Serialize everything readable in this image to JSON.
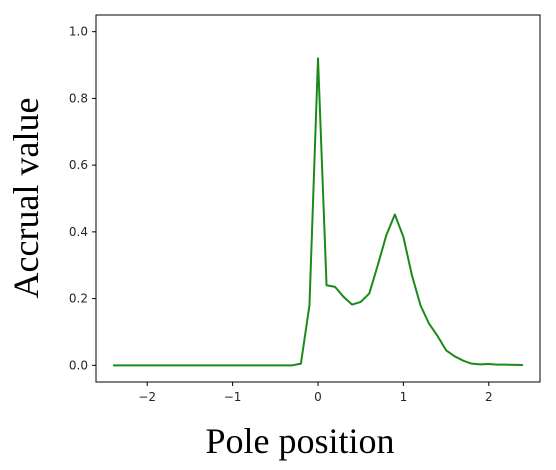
{
  "chart_data": {
    "type": "line",
    "title": "",
    "xlabel": "Pole position",
    "ylabel": "Accrual value",
    "xlim": [
      -2.6,
      2.6
    ],
    "ylim": [
      -0.05,
      1.05
    ],
    "xticks": [
      -2,
      -1,
      0,
      1,
      2
    ],
    "xtick_labels": [
      "−2",
      "−1",
      "0",
      "1",
      "2"
    ],
    "yticks": [
      0.0,
      0.2,
      0.4,
      0.6,
      0.8,
      1.0
    ],
    "ytick_labels": [
      "0.0",
      "0.2",
      "0.4",
      "0.6",
      "0.8",
      "1.0"
    ],
    "grid": false,
    "legend": "none",
    "series": [
      {
        "color": "#1a8a1a",
        "x": [
          -2.4,
          -2.2,
          -2.0,
          -1.8,
          -1.6,
          -1.4,
          -1.2,
          -1.0,
          -0.8,
          -0.6,
          -0.4,
          -0.3,
          -0.2,
          -0.1,
          0.0,
          0.1,
          0.2,
          0.3,
          0.4,
          0.5,
          0.6,
          0.7,
          0.8,
          0.9,
          1.0,
          1.1,
          1.2,
          1.3,
          1.4,
          1.5,
          1.6,
          1.7,
          1.8,
          1.9,
          2.0,
          2.1,
          2.2,
          2.4
        ],
        "y": [
          0.0,
          0.0,
          0.0,
          0.0,
          0.0,
          0.0,
          0.0,
          0.0,
          0.0,
          0.0,
          0.0,
          0.0,
          0.005,
          0.18,
          0.92,
          0.24,
          0.235,
          0.205,
          0.182,
          0.19,
          0.215,
          0.3,
          0.39,
          0.452,
          0.385,
          0.27,
          0.18,
          0.125,
          0.088,
          0.045,
          0.027,
          0.014,
          0.005,
          0.003,
          0.004,
          0.002,
          0.002,
          0.001
        ]
      }
    ]
  }
}
